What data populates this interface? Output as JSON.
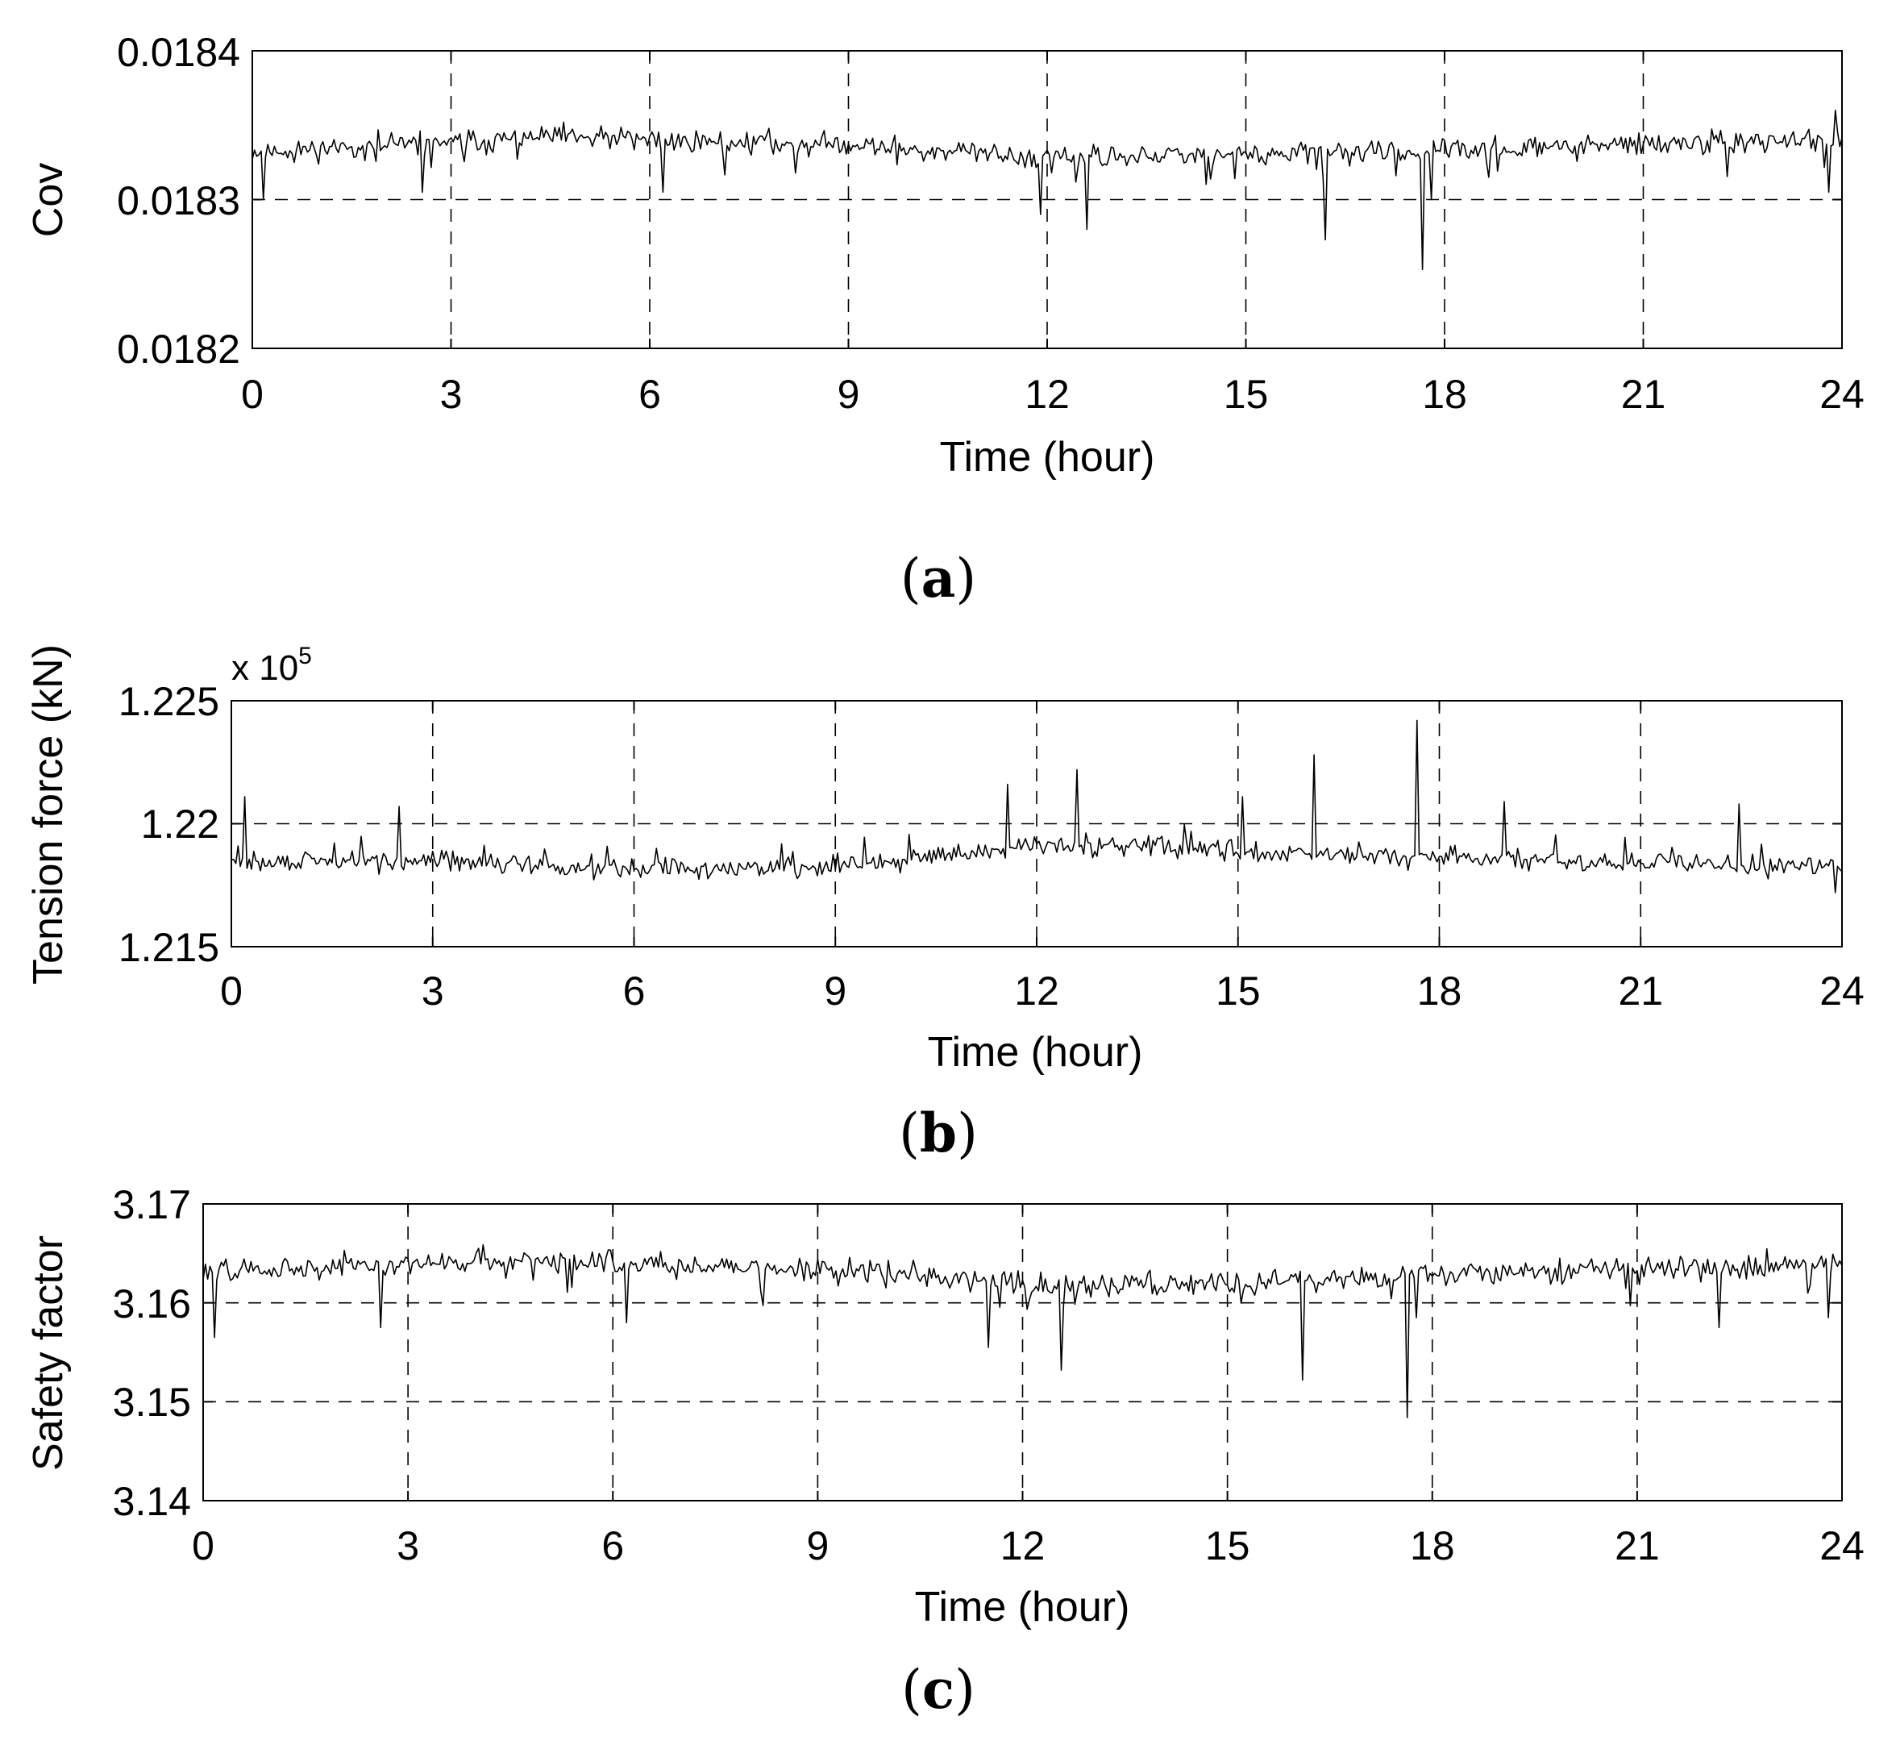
{
  "chart_data": [
    {
      "type": "line",
      "panel_label": "a",
      "xlabel": "Time (hour)",
      "ylabel": "Cov",
      "xlim": [
        0,
        24
      ],
      "ylim": [
        0.0182,
        0.0184
      ],
      "x_ticks": [
        "0",
        "3",
        "6",
        "9",
        "12",
        "15",
        "18",
        "21",
        "24"
      ],
      "y_ticks": [
        "0.0182",
        "0.0183",
        "0.0184"
      ],
      "y_tick_values": [
        0.0182,
        0.0183,
        0.0184
      ],
      "grid": true,
      "scale_note": "",
      "baseline": 0.018334,
      "noise": 4.8e-06,
      "drift": [
        [
          0,
          0.018332
        ],
        [
          4.5,
          0.018342
        ],
        [
          6,
          0.01834
        ],
        [
          9,
          0.018337
        ],
        [
          12,
          0.018328
        ],
        [
          15,
          0.01833
        ],
        [
          18,
          0.018333
        ],
        [
          21,
          0.018337
        ],
        [
          24,
          0.01834
        ]
      ],
      "spikes": [
        [
          0.15,
          0.0183
        ],
        [
          2.55,
          0.018305
        ],
        [
          6.2,
          0.018305
        ],
        [
          11.9,
          0.01829
        ],
        [
          12.6,
          0.01828
        ],
        [
          16.2,
          0.018273
        ],
        [
          17.65,
          0.018253
        ],
        [
          17.8,
          0.0183
        ],
        [
          23.8,
          0.018305
        ],
        [
          23.9,
          0.01836
        ]
      ],
      "series": [
        {
          "name": "Cov",
          "seed": 11
        }
      ]
    },
    {
      "type": "line",
      "panel_label": "b",
      "xlabel": "Time (hour)",
      "ylabel": "Tension force (kN)",
      "xlim": [
        0,
        24
      ],
      "ylim": [
        1.215,
        1.225
      ],
      "x_ticks": [
        "0",
        "3",
        "6",
        "9",
        "12",
        "15",
        "18",
        "21",
        "24"
      ],
      "y_ticks": [
        "1.215",
        "1.22",
        "1.225"
      ],
      "y_tick_values": [
        1.215,
        1.22,
        1.225
      ],
      "grid": true,
      "scale_note": "x 10",
      "scale_exponent": "5",
      "baseline": 1.2185,
      "noise": 0.00025,
      "drift": [
        [
          0,
          1.2184
        ],
        [
          3,
          1.2185
        ],
        [
          5,
          1.2182
        ],
        [
          9,
          1.2182
        ],
        [
          12,
          1.2191
        ],
        [
          14,
          1.2191
        ],
        [
          16,
          1.2187
        ],
        [
          18,
          1.2186
        ],
        [
          21,
          1.2184
        ],
        [
          24,
          1.2182
        ]
      ],
      "spikes": [
        [
          0.2,
          1.2211
        ],
        [
          2.5,
          1.2207
        ],
        [
          11.55,
          1.2216
        ],
        [
          12.6,
          1.2222
        ],
        [
          15.05,
          1.2211
        ],
        [
          16.15,
          1.2228
        ],
        [
          17.65,
          1.2242
        ],
        [
          18.95,
          1.2209
        ],
        [
          22.45,
          1.2208
        ],
        [
          23.9,
          1.2172
        ]
      ],
      "series": [
        {
          "name": "Tension force",
          "seed": 29
        }
      ]
    },
    {
      "type": "line",
      "panel_label": "c",
      "xlabel": "Time (hour)",
      "ylabel": "Safety factor",
      "xlim": [
        0,
        24
      ],
      "ylim": [
        3.14,
        3.17
      ],
      "x_ticks": [
        "0",
        "3",
        "6",
        "9",
        "12",
        "15",
        "18",
        "21",
        "24"
      ],
      "y_ticks": [
        "3.14",
        "3.15",
        "3.16",
        "3.17"
      ],
      "y_tick_values": [
        3.14,
        3.15,
        3.16,
        3.17
      ],
      "grid": true,
      "scale_note": "",
      "baseline": 3.1633,
      "noise": 0.00075,
      "drift": [
        [
          0,
          3.1632
        ],
        [
          4.5,
          3.1645
        ],
        [
          6,
          3.164
        ],
        [
          9,
          3.1635
        ],
        [
          12,
          3.1618
        ],
        [
          15,
          3.162
        ],
        [
          18,
          3.1628
        ],
        [
          21,
          3.1635
        ],
        [
          24,
          3.164
        ]
      ],
      "spikes": [
        [
          0.15,
          3.1565
        ],
        [
          2.6,
          3.1575
        ],
        [
          6.2,
          3.158
        ],
        [
          11.5,
          3.1555
        ],
        [
          12.55,
          3.1532
        ],
        [
          16.1,
          3.1522
        ],
        [
          17.62,
          3.1484
        ],
        [
          17.75,
          3.1585
        ],
        [
          22.2,
          3.1575
        ],
        [
          23.8,
          3.1585
        ]
      ],
      "series": [
        {
          "name": "Safety factor",
          "seed": 47
        }
      ]
    }
  ]
}
